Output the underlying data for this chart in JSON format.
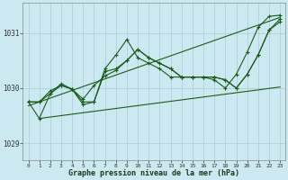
{
  "xlabel": "Graphe pression niveau de la mer (hPa)",
  "background_color": "#cce8f0",
  "grid_color": "#aaccda",
  "line_color": "#1a5c1a",
  "ylim": [
    1028.7,
    1031.55
  ],
  "xlim": [
    -0.5,
    23.5
  ],
  "yticks": [
    1029,
    1030,
    1031
  ],
  "xticks": [
    0,
    1,
    2,
    3,
    4,
    5,
    6,
    7,
    8,
    9,
    10,
    11,
    12,
    13,
    14,
    15,
    16,
    17,
    18,
    19,
    20,
    21,
    22,
    23
  ],
  "s1": [
    1029.75,
    1029.75,
    1029.95,
    1030.05,
    1029.98,
    1029.75,
    1029.75,
    1030.3,
    1030.35,
    1030.5,
    1030.7,
    1030.55,
    1030.45,
    1030.35,
    1030.2,
    1030.2,
    1030.2,
    1030.2,
    1030.15,
    1030.0,
    1030.25,
    1030.6,
    1031.05,
    1031.2
  ],
  "s2": [
    1029.75,
    1029.45,
    1029.9,
    1030.05,
    1029.98,
    1029.7,
    1029.75,
    1030.35,
    1030.6,
    1030.88,
    1030.55,
    1030.45,
    1030.35,
    1030.2,
    1030.2,
    1030.2,
    1030.2,
    1030.15,
    1030.0,
    1030.25,
    1030.65,
    1031.1,
    1031.3,
    1031.32
  ],
  "s3": [
    1029.75,
    1029.75,
    1029.9,
    1030.08,
    1029.98,
    1029.8,
    1030.05,
    1030.22,
    1030.32,
    1030.5,
    1030.7,
    1030.55,
    1030.45,
    1030.35,
    1030.2,
    1030.2,
    1030.2,
    1030.2,
    1030.15,
    1030.0,
    1030.25,
    1030.6,
    1031.05,
    1031.25
  ],
  "trend1_x": [
    0,
    23
  ],
  "trend1_y": [
    1029.68,
    1031.28
  ],
  "trend2_x": [
    1,
    23
  ],
  "trend2_y": [
    1029.45,
    1030.02
  ]
}
